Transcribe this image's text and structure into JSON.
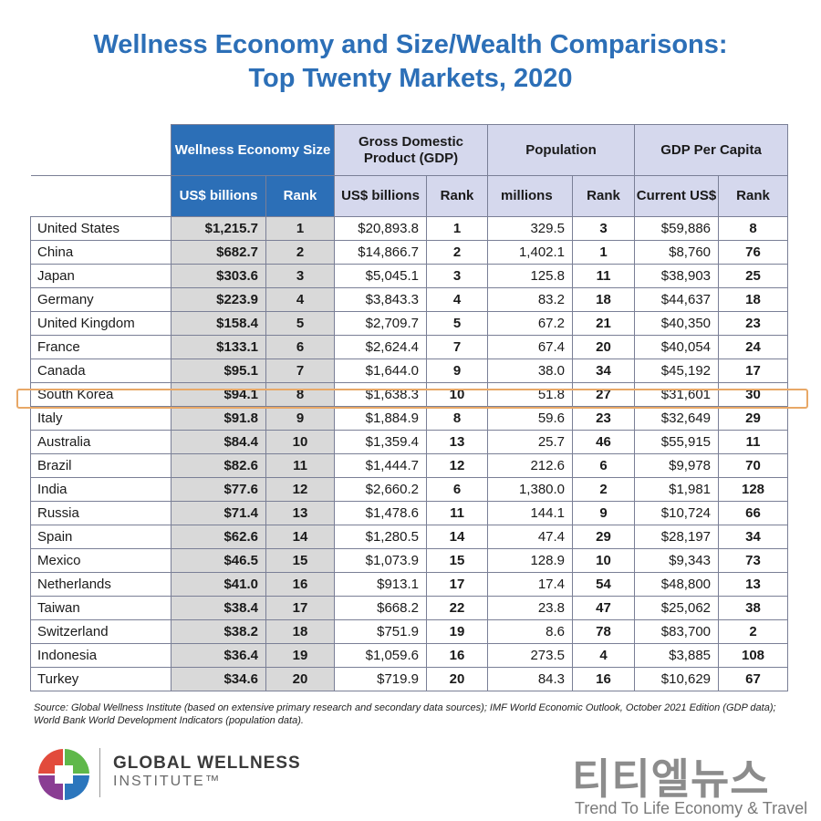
{
  "title": {
    "line1": "Wellness Economy and Size/Wealth Comparisons:",
    "line2": "Top Twenty Markets, 2020"
  },
  "headers": {
    "wellness_group": "Wellness Economy Size",
    "gdp_group": "Gross Domestic Product (GDP)",
    "population_group": "Population",
    "gdp_per_capita_group": "GDP Per Capita",
    "wellness_unit": "US$ billions",
    "gdp_unit": "US$ billions",
    "population_unit": "millions",
    "gdp_per_capita_unit": "Current US$",
    "rank": "Rank"
  },
  "chart_data": {
    "type": "table",
    "title": "Wellness Economy and Size/Wealth Comparisons: Top Twenty Markets, 2020",
    "columns": [
      "Wellness Economy Size US$ billions",
      "Rank",
      "GDP US$ billions",
      "Rank",
      "Population millions",
      "Rank",
      "GDP Per Capita Current US$",
      "Rank"
    ],
    "rows": [
      {
        "country": "United States",
        "wellness": "$1,215.7",
        "wellness_rank": "1",
        "gdp": "$20,893.8",
        "gdp_rank": "1",
        "population": "329.5",
        "population_rank": "3",
        "gdp_per_capita": "$59,886",
        "gdp_per_capita_rank": "8"
      },
      {
        "country": "China",
        "wellness": "$682.7",
        "wellness_rank": "2",
        "gdp": "$14,866.7",
        "gdp_rank": "2",
        "population": "1,402.1",
        "population_rank": "1",
        "gdp_per_capita": "$8,760",
        "gdp_per_capita_rank": "76"
      },
      {
        "country": "Japan",
        "wellness": "$303.6",
        "wellness_rank": "3",
        "gdp": "$5,045.1",
        "gdp_rank": "3",
        "population": "125.8",
        "population_rank": "11",
        "gdp_per_capita": "$38,903",
        "gdp_per_capita_rank": "25"
      },
      {
        "country": "Germany",
        "wellness": "$223.9",
        "wellness_rank": "4",
        "gdp": "$3,843.3",
        "gdp_rank": "4",
        "population": "83.2",
        "population_rank": "18",
        "gdp_per_capita": "$44,637",
        "gdp_per_capita_rank": "18"
      },
      {
        "country": "United Kingdom",
        "wellness": "$158.4",
        "wellness_rank": "5",
        "gdp": "$2,709.7",
        "gdp_rank": "5",
        "population": "67.2",
        "population_rank": "21",
        "gdp_per_capita": "$40,350",
        "gdp_per_capita_rank": "23"
      },
      {
        "country": "France",
        "wellness": "$133.1",
        "wellness_rank": "6",
        "gdp": "$2,624.4",
        "gdp_rank": "7",
        "population": "67.4",
        "population_rank": "20",
        "gdp_per_capita": "$40,054",
        "gdp_per_capita_rank": "24"
      },
      {
        "country": "Canada",
        "wellness": "$95.1",
        "wellness_rank": "7",
        "gdp": "$1,644.0",
        "gdp_rank": "9",
        "population": "38.0",
        "population_rank": "34",
        "gdp_per_capita": "$45,192",
        "gdp_per_capita_rank": "17"
      },
      {
        "country": "South Korea",
        "wellness": "$94.1",
        "wellness_rank": "8",
        "gdp": "$1,638.3",
        "gdp_rank": "10",
        "population": "51.8",
        "population_rank": "27",
        "gdp_per_capita": "$31,601",
        "gdp_per_capita_rank": "30"
      },
      {
        "country": "Italy",
        "wellness": "$91.8",
        "wellness_rank": "9",
        "gdp": "$1,884.9",
        "gdp_rank": "8",
        "population": "59.6",
        "population_rank": "23",
        "gdp_per_capita": "$32,649",
        "gdp_per_capita_rank": "29"
      },
      {
        "country": "Australia",
        "wellness": "$84.4",
        "wellness_rank": "10",
        "gdp": "$1,359.4",
        "gdp_rank": "13",
        "population": "25.7",
        "population_rank": "46",
        "gdp_per_capita": "$55,915",
        "gdp_per_capita_rank": "11"
      },
      {
        "country": "Brazil",
        "wellness": "$82.6",
        "wellness_rank": "11",
        "gdp": "$1,444.7",
        "gdp_rank": "12",
        "population": "212.6",
        "population_rank": "6",
        "gdp_per_capita": "$9,978",
        "gdp_per_capita_rank": "70"
      },
      {
        "country": "India",
        "wellness": "$77.6",
        "wellness_rank": "12",
        "gdp": "$2,660.2",
        "gdp_rank": "6",
        "population": "1,380.0",
        "population_rank": "2",
        "gdp_per_capita": "$1,981",
        "gdp_per_capita_rank": "128"
      },
      {
        "country": "Russia",
        "wellness": "$71.4",
        "wellness_rank": "13",
        "gdp": "$1,478.6",
        "gdp_rank": "11",
        "population": "144.1",
        "population_rank": "9",
        "gdp_per_capita": "$10,724",
        "gdp_per_capita_rank": "66"
      },
      {
        "country": "Spain",
        "wellness": "$62.6",
        "wellness_rank": "14",
        "gdp": "$1,280.5",
        "gdp_rank": "14",
        "population": "47.4",
        "population_rank": "29",
        "gdp_per_capita": "$28,197",
        "gdp_per_capita_rank": "34"
      },
      {
        "country": "Mexico",
        "wellness": "$46.5",
        "wellness_rank": "15",
        "gdp": "$1,073.9",
        "gdp_rank": "15",
        "population": "128.9",
        "population_rank": "10",
        "gdp_per_capita": "$9,343",
        "gdp_per_capita_rank": "73"
      },
      {
        "country": "Netherlands",
        "wellness": "$41.0",
        "wellness_rank": "16",
        "gdp": "$913.1",
        "gdp_rank": "17",
        "population": "17.4",
        "population_rank": "54",
        "gdp_per_capita": "$48,800",
        "gdp_per_capita_rank": "13"
      },
      {
        "country": "Taiwan",
        "wellness": "$38.4",
        "wellness_rank": "17",
        "gdp": "$668.2",
        "gdp_rank": "22",
        "population": "23.8",
        "population_rank": "47",
        "gdp_per_capita": "$25,062",
        "gdp_per_capita_rank": "38"
      },
      {
        "country": "Switzerland",
        "wellness": "$38.2",
        "wellness_rank": "18",
        "gdp": "$751.9",
        "gdp_rank": "19",
        "population": "8.6",
        "population_rank": "78",
        "gdp_per_capita": "$83,700",
        "gdp_per_capita_rank": "2"
      },
      {
        "country": "Indonesia",
        "wellness": "$36.4",
        "wellness_rank": "19",
        "gdp": "$1,059.6",
        "gdp_rank": "16",
        "population": "273.5",
        "population_rank": "4",
        "gdp_per_capita": "$3,885",
        "gdp_per_capita_rank": "108"
      },
      {
        "country": "Turkey",
        "wellness": "$34.6",
        "wellness_rank": "20",
        "gdp": "$719.9",
        "gdp_rank": "20",
        "population": "84.3",
        "population_rank": "16",
        "gdp_per_capita": "$10,629",
        "gdp_per_capita_rank": "67"
      }
    ],
    "highlighted_row": "South Korea"
  },
  "source": "Source: Global Wellness Institute (based on extensive primary research and secondary data sources); IMF World Economic Outlook, October 2021 Edition (GDP data); World Bank World Development Indicators (population data).",
  "footer": {
    "brand_line1": "GLOBAL WELLNESS",
    "brand_line2": "INSTITUTE™",
    "watermark_korean": "티티엘뉴스",
    "watermark_english": "Trend To Life Economy & Travel"
  },
  "colors": {
    "title_blue": "#2c6fb7",
    "header_lavender": "#d5d8ed",
    "wellness_gray": "#d9d9d9",
    "highlight_orange": "#e8a867"
  }
}
